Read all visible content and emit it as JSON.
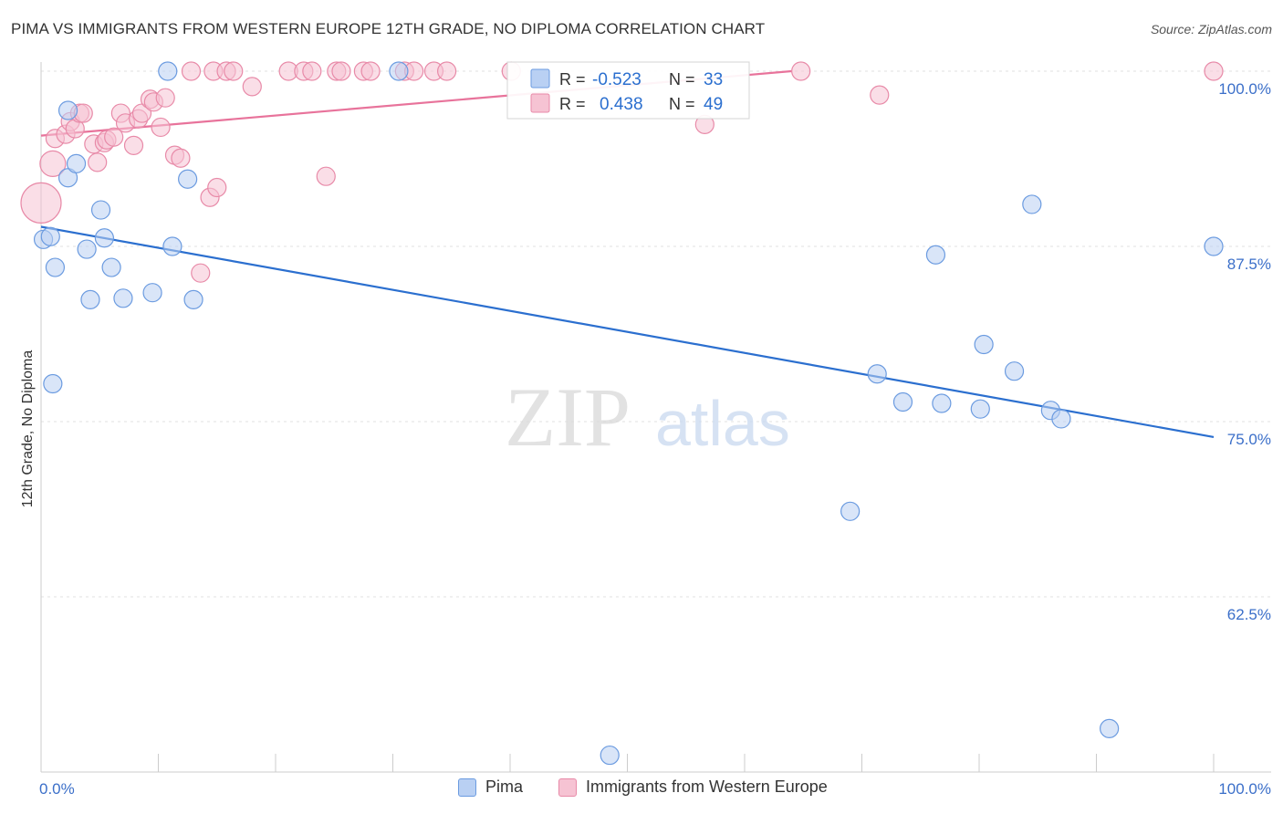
{
  "title": "PIMA VS IMMIGRANTS FROM WESTERN EUROPE 12TH GRADE, NO DIPLOMA CORRELATION CHART",
  "source": "Source: ZipAtlas.com",
  "watermark": {
    "zip": "ZIP",
    "atlas": "atlas"
  },
  "colors": {
    "pima": "#6b9be0",
    "pima_fill": "#b9d0f3",
    "pima_line": "#2b6fcf",
    "immigrants": "#e88aa8",
    "immigrants_fill": "#f6c3d3",
    "immigrants_line": "#e8739b",
    "tick_text": "#3b6fc9",
    "value_text": "#2b6fcf"
  },
  "stats_legend": {
    "rows": [
      {
        "r_label": "R =",
        "r_value": "-0.523",
        "n_label": "N =",
        "n_value": "33"
      },
      {
        "r_label": "R =",
        "r_value": "0.438",
        "n_label": "N =",
        "n_value": "49"
      }
    ]
  },
  "bottom_legend": {
    "pima": "Pima",
    "immigrants": "Immigrants from Western Europe"
  },
  "chart_data": {
    "type": "scatter",
    "title": "PIMA VS IMMIGRANTS FROM WESTERN EUROPE 12TH GRADE, NO DIPLOMA CORRELATION CHART",
    "xlabel": "",
    "ylabel": "12th Grade, No Diploma",
    "xlim": [
      0,
      100
    ],
    "ylim": [
      50,
      101.2
    ],
    "x_tick_labels": [
      "0.0%",
      "100.0%"
    ],
    "y_ticks": [
      62.5,
      75.0,
      87.5,
      100.0
    ],
    "y_tick_labels": [
      "62.5%",
      "75.0%",
      "87.5%",
      "100.0%"
    ],
    "series": [
      {
        "name": "Pima",
        "r": -0.523,
        "n": 33,
        "trend": {
          "x": [
            0,
            100
          ],
          "y": [
            88.9,
            73.9
          ]
        },
        "points": [
          [
            0.2,
            88.0,
            10
          ],
          [
            0.8,
            88.2,
            10
          ],
          [
            1.2,
            86.0,
            10
          ],
          [
            2.3,
            92.4,
            10
          ],
          [
            2.3,
            97.2,
            10
          ],
          [
            3.0,
            93.4,
            10
          ],
          [
            3.9,
            87.3,
            10
          ],
          [
            4.2,
            83.7,
            10
          ],
          [
            5.1,
            90.1,
            10
          ],
          [
            5.4,
            88.1,
            10
          ],
          [
            6.0,
            86.0,
            10
          ],
          [
            7.0,
            83.8,
            10
          ],
          [
            9.5,
            84.2,
            10
          ],
          [
            10.8,
            100.0,
            10
          ],
          [
            11.2,
            87.5,
            10
          ],
          [
            12.5,
            92.3,
            10
          ],
          [
            13.0,
            83.7,
            10
          ],
          [
            1.0,
            77.7,
            10
          ],
          [
            30.5,
            100.0,
            10
          ],
          [
            48.5,
            51.2,
            10
          ],
          [
            69.0,
            68.6,
            10
          ],
          [
            71.3,
            78.4,
            10
          ],
          [
            73.5,
            76.4,
            10
          ],
          [
            76.3,
            86.9,
            10
          ],
          [
            76.8,
            76.3,
            10
          ],
          [
            80.1,
            75.9,
            10
          ],
          [
            80.4,
            80.5,
            10
          ],
          [
            83.0,
            78.6,
            10
          ],
          [
            84.5,
            90.5,
            10
          ],
          [
            86.1,
            75.8,
            10
          ],
          [
            87.0,
            75.2,
            10
          ],
          [
            91.1,
            53.1,
            10
          ],
          [
            100.0,
            87.5,
            10
          ]
        ]
      },
      {
        "name": "Immigrants from Western Europe",
        "r": 0.438,
        "n": 49,
        "trend": {
          "x": [
            0,
            64
          ],
          "y": [
            95.4,
            100.0
          ]
        },
        "points": [
          [
            0.0,
            90.6,
            22
          ],
          [
            1.0,
            93.4,
            14
          ],
          [
            1.2,
            95.2,
            10
          ],
          [
            2.1,
            95.5,
            10
          ],
          [
            2.5,
            96.4,
            10
          ],
          [
            2.9,
            95.9,
            10
          ],
          [
            3.3,
            97.0,
            10
          ],
          [
            3.6,
            97.0,
            10
          ],
          [
            4.5,
            94.8,
            10
          ],
          [
            4.8,
            93.5,
            10
          ],
          [
            5.4,
            94.9,
            10
          ],
          [
            5.6,
            95.1,
            10
          ],
          [
            6.2,
            95.3,
            10
          ],
          [
            6.8,
            97.0,
            10
          ],
          [
            7.2,
            96.3,
            10
          ],
          [
            7.9,
            94.7,
            10
          ],
          [
            8.3,
            96.6,
            10
          ],
          [
            8.6,
            97.0,
            10
          ],
          [
            9.3,
            98.0,
            10
          ],
          [
            9.6,
            97.8,
            10
          ],
          [
            10.2,
            96.0,
            10
          ],
          [
            10.6,
            98.1,
            10
          ],
          [
            11.4,
            94.0,
            10
          ],
          [
            11.9,
            93.8,
            10
          ],
          [
            12.8,
            100.0,
            10
          ],
          [
            13.6,
            85.6,
            10
          ],
          [
            14.4,
            91.0,
            10
          ],
          [
            15.0,
            91.7,
            10
          ],
          [
            14.7,
            100.0,
            10
          ],
          [
            15.8,
            100.0,
            10
          ],
          [
            16.4,
            100.0,
            10
          ],
          [
            18.0,
            98.9,
            10
          ],
          [
            21.1,
            100.0,
            10
          ],
          [
            22.4,
            100.0,
            10
          ],
          [
            23.1,
            100.0,
            10
          ],
          [
            25.2,
            100.0,
            10
          ],
          [
            25.6,
            100.0,
            10
          ],
          [
            27.5,
            100.0,
            10
          ],
          [
            28.1,
            100.0,
            10
          ],
          [
            24.3,
            92.5,
            10
          ],
          [
            31.0,
            100.0,
            10
          ],
          [
            31.8,
            100.0,
            10
          ],
          [
            33.5,
            100.0,
            10
          ],
          [
            34.6,
            100.0,
            10
          ],
          [
            40.1,
            100.0,
            10
          ],
          [
            56.6,
            96.2,
            10
          ],
          [
            64.8,
            100.0,
            10
          ],
          [
            71.5,
            98.3,
            10
          ],
          [
            100.0,
            100.0,
            10
          ]
        ]
      }
    ]
  }
}
